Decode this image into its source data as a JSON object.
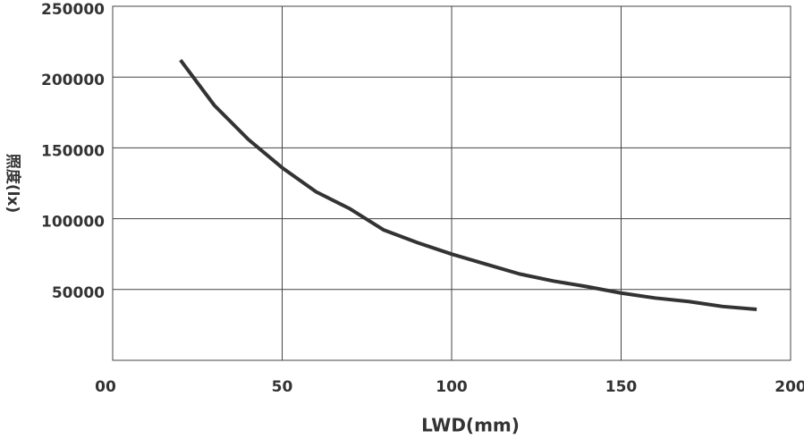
{
  "chart_data": {
    "type": "line",
    "x_label": "LWD(mm)",
    "y_label": "照度(lx)",
    "x": [
      20,
      30,
      40,
      50,
      60,
      70,
      80,
      90,
      100,
      110,
      120,
      130,
      140,
      150,
      160,
      170,
      180,
      190
    ],
    "series": [
      {
        "color": "#333333",
        "values": [
          212000,
          180000,
          156000,
          136000,
          119000,
          107000,
          92000,
          83000,
          75000,
          68000,
          61000,
          56000,
          52000,
          47500,
          44000,
          41500,
          38000,
          36000
        ]
      }
    ],
    "xlim": [
      0,
      200
    ],
    "xticks": [
      {
        "value": 0,
        "label": "00"
      },
      50,
      100,
      150,
      200
    ],
    "ylim": [
      0,
      250000
    ],
    "yticks": [
      50000,
      100000,
      150000,
      200000,
      250000
    ],
    "grid": true
  }
}
